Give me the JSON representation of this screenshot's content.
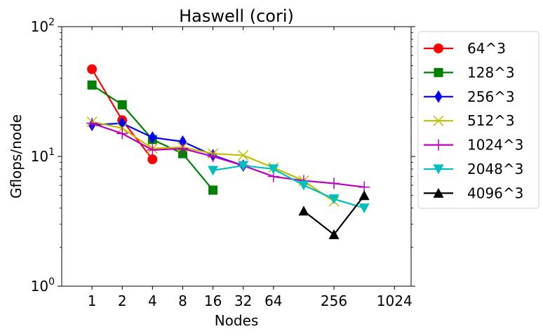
{
  "chart_data": {
    "type": "line",
    "title": "Haswell (cori)",
    "xlabel": "Nodes",
    "ylabel": "Gflops/node",
    "x_scale": "log2",
    "y_scale": "log10",
    "xlim": [
      0.5,
      1500
    ],
    "ylim": [
      1,
      100
    ],
    "x_ticks": [
      1,
      2,
      4,
      8,
      16,
      32,
      64,
      256,
      1024
    ],
    "x_tick_labels": [
      "1",
      "2",
      "4",
      "8",
      "16",
      "32",
      "64",
      "256",
      "1024"
    ],
    "y_ticks": [
      1,
      10,
      100
    ],
    "y_tick_labels": [
      {
        "base": "10",
        "exp": "0"
      },
      {
        "base": "10",
        "exp": "1"
      },
      {
        "base": "10",
        "exp": "2"
      }
    ],
    "legend_position": "outside-right",
    "grid": false,
    "series": [
      {
        "name": "64^3",
        "color": "#ff0000",
        "marker": "circle",
        "points": [
          [
            1,
            47
          ],
          [
            2,
            19
          ],
          [
            4,
            9.5
          ]
        ]
      },
      {
        "name": "128^3",
        "color": "#008000",
        "marker": "square",
        "points": [
          [
            1,
            35.5
          ],
          [
            2,
            25
          ],
          [
            4,
            13.5
          ],
          [
            8,
            10.5
          ],
          [
            16,
            5.5
          ]
        ]
      },
      {
        "name": "256^3",
        "color": "#0000ff",
        "marker": "thin_diamond",
        "points": [
          [
            1,
            17.5
          ],
          [
            2,
            18
          ],
          [
            4,
            14
          ],
          [
            8,
            13
          ],
          [
            16,
            10.2
          ],
          [
            32,
            8.5
          ]
        ]
      },
      {
        "name": "512^3",
        "color": "#bfbf00",
        "marker": "x",
        "points": [
          [
            1,
            18.5
          ],
          [
            2,
            16.5
          ],
          [
            4,
            11.5
          ],
          [
            8,
            11.8
          ],
          [
            16,
            10.5
          ],
          [
            32,
            10.2
          ],
          [
            64,
            8.2
          ],
          [
            128,
            6.5
          ],
          [
            256,
            4.5
          ]
        ]
      },
      {
        "name": "1024^3",
        "color": "#bf00bf",
        "marker": "plus",
        "points": [
          [
            1,
            18
          ],
          [
            2,
            15
          ],
          [
            4,
            11.2
          ],
          [
            8,
            11.5
          ],
          [
            16,
            10
          ],
          [
            32,
            8.5
          ],
          [
            64,
            7
          ],
          [
            128,
            6.5
          ],
          [
            256,
            6.2
          ],
          [
            512,
            5.8
          ]
        ]
      },
      {
        "name": "2048^3",
        "color": "#00bfbf",
        "marker": "triangle_down",
        "points": [
          [
            16,
            7.8
          ],
          [
            32,
            8.5
          ],
          [
            64,
            8
          ],
          [
            128,
            6
          ],
          [
            256,
            4.7
          ],
          [
            512,
            4
          ]
        ]
      },
      {
        "name": "4096^3",
        "color": "#000000",
        "marker": "triangle_up",
        "points": [
          [
            128,
            3.8
          ],
          [
            256,
            2.5
          ],
          [
            512,
            5
          ]
        ]
      }
    ]
  }
}
